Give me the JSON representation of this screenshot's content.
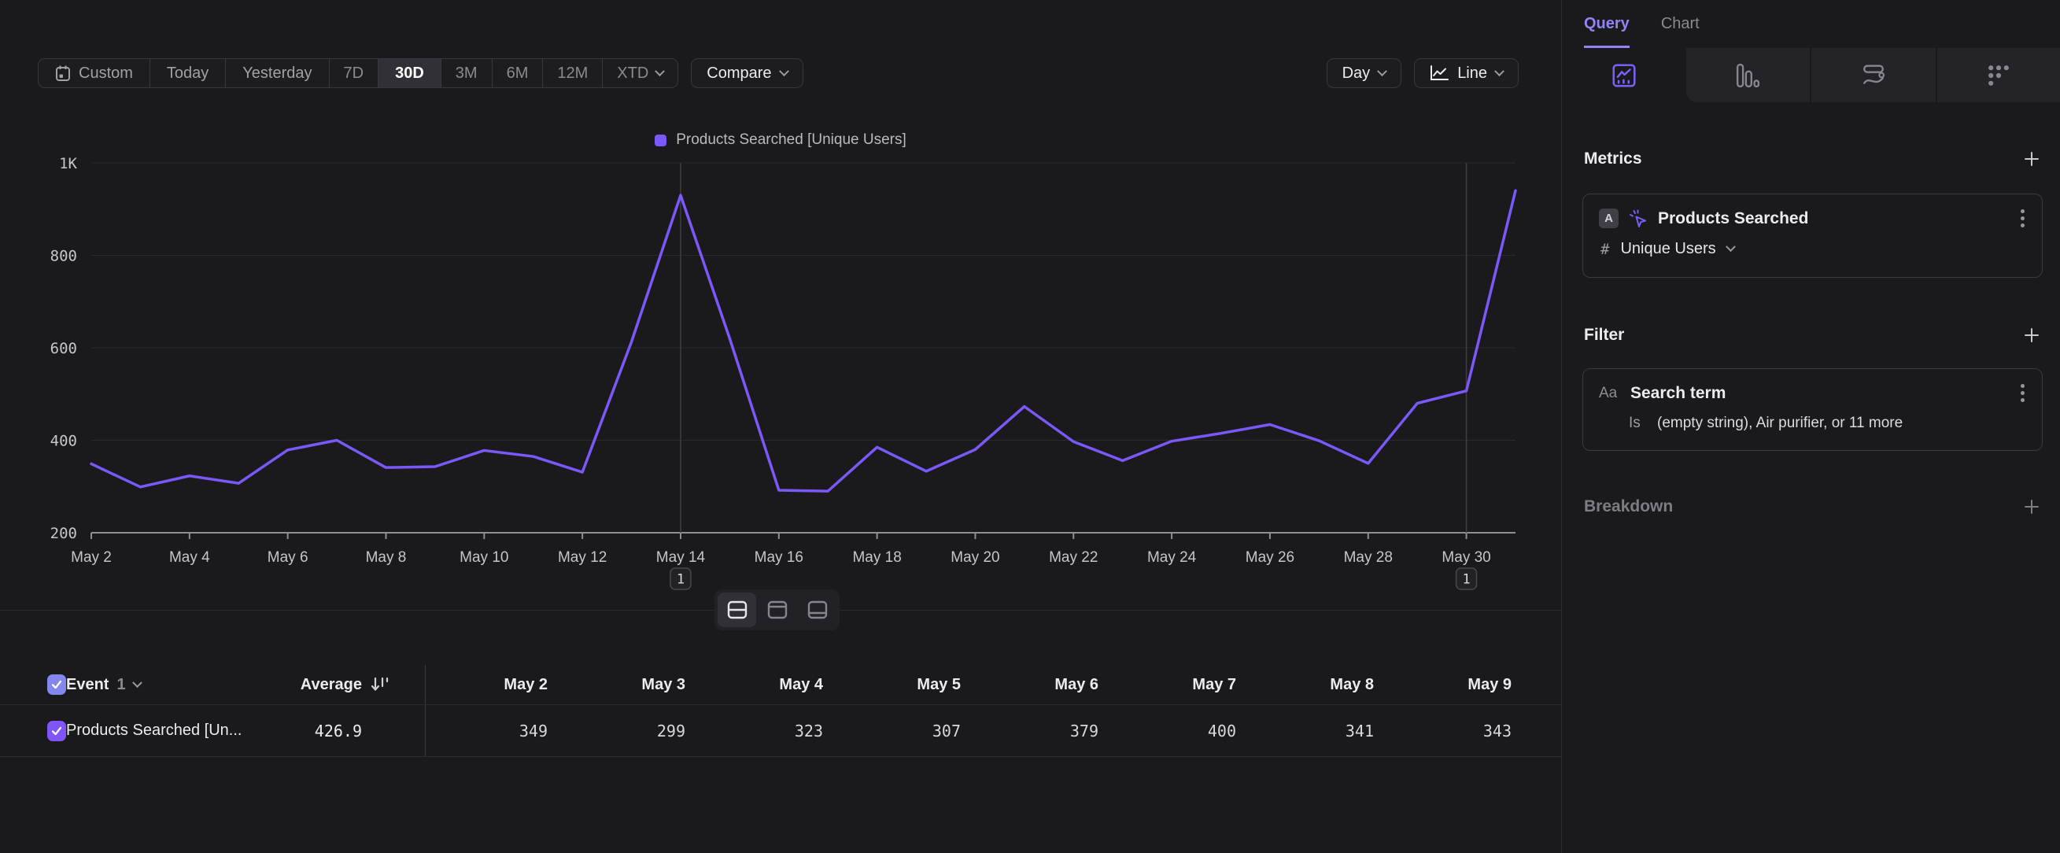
{
  "toolbar": {
    "ranges": [
      "Custom",
      "Today",
      "Yesterday",
      "7D",
      "30D",
      "3M",
      "6M",
      "12M",
      "XTD"
    ],
    "selected": "30D",
    "compare": "Compare",
    "granularity": "Day",
    "chart_type": "Line"
  },
  "legend": {
    "label": "Products Searched [Unique Users]"
  },
  "chart_data": {
    "type": "line",
    "title": "Products Searched [Unique Users]",
    "x": [
      "May 2",
      "May 3",
      "May 4",
      "May 5",
      "May 6",
      "May 7",
      "May 8",
      "May 9",
      "May 10",
      "May 11",
      "May 12",
      "May 13",
      "May 14",
      "May 15",
      "May 16",
      "May 17",
      "May 18",
      "May 19",
      "May 20",
      "May 21",
      "May 22",
      "May 23",
      "May 24",
      "May 25",
      "May 26",
      "May 27",
      "May 28",
      "May 29",
      "May 30",
      "May 31"
    ],
    "series": [
      {
        "name": "Products Searched [Unique Users]",
        "color": "#7a58f9",
        "values": [
          349,
          299,
          323,
          307,
          379,
          400,
          341,
          343,
          378,
          365,
          331,
          613,
          930,
          620,
          292,
          290,
          385,
          333,
          380,
          473,
          397,
          356,
          398,
          415,
          434,
          399,
          350,
          480,
          507,
          940
        ]
      }
    ],
    "ylim": [
      200,
      1000
    ],
    "yticks": [
      {
        "label": "1K",
        "value": 1000
      },
      {
        "label": "800",
        "value": 800
      },
      {
        "label": "600",
        "value": 600
      },
      {
        "label": "400",
        "value": 400
      },
      {
        "label": "200",
        "value": 200
      }
    ],
    "xtick_labels": [
      "May 2",
      "May 4",
      "May 6",
      "May 8",
      "May 10",
      "May 12",
      "May 14",
      "May 16",
      "May 18",
      "May 20",
      "May 22",
      "May 24",
      "May 26",
      "May 28",
      "May 30"
    ],
    "annotations": [
      {
        "x": "May 14",
        "label": "1"
      },
      {
        "x": "May 30",
        "label": "1"
      }
    ],
    "grid": "horizontal",
    "legend_position": "top-center"
  },
  "layout_toggles": {
    "options": [
      "split-view",
      "chart-only",
      "table-only"
    ],
    "active": "split-view"
  },
  "table": {
    "header": {
      "event": "Event",
      "count": "1",
      "average": "Average"
    },
    "columns": [
      "May 2",
      "May 3",
      "May 4",
      "May 5",
      "May 6",
      "May 7",
      "May 8",
      "May 9"
    ],
    "rows": [
      {
        "name": "Products Searched [Un...",
        "average": "426.9",
        "values": [
          "349",
          "299",
          "323",
          "307",
          "379",
          "400",
          "341",
          "343"
        ]
      }
    ]
  },
  "panel": {
    "tabs": [
      {
        "label": "Query",
        "active": true
      },
      {
        "label": "Chart",
        "active": false
      }
    ],
    "report_tabs": [
      {
        "name": "insights",
        "active": true
      },
      {
        "name": "funnels",
        "active": false
      },
      {
        "name": "flows",
        "active": false
      },
      {
        "name": "retention",
        "active": false
      }
    ],
    "metrics": {
      "heading": "Metrics",
      "row_badge": "A",
      "event_name": "Products Searched",
      "agg_symbol": "#",
      "aggregation": "Unique Users"
    },
    "filter": {
      "heading": "Filter",
      "type_badge": "Aa",
      "property": "Search term",
      "operator": "Is",
      "values": "(empty string), Air purifier, or 11 more"
    },
    "breakdown": {
      "heading": "Breakdown"
    }
  },
  "colors": {
    "accent": "#7c5ff8",
    "series": "#7a58f9",
    "query_tab": "#9184f5",
    "header_checkbox": "#8487ec",
    "row_checkbox": "#7e55f6",
    "axis_text": "#c7c7cb",
    "grid_line": "#2b2b2f",
    "axis_line": "#8e8e93"
  }
}
